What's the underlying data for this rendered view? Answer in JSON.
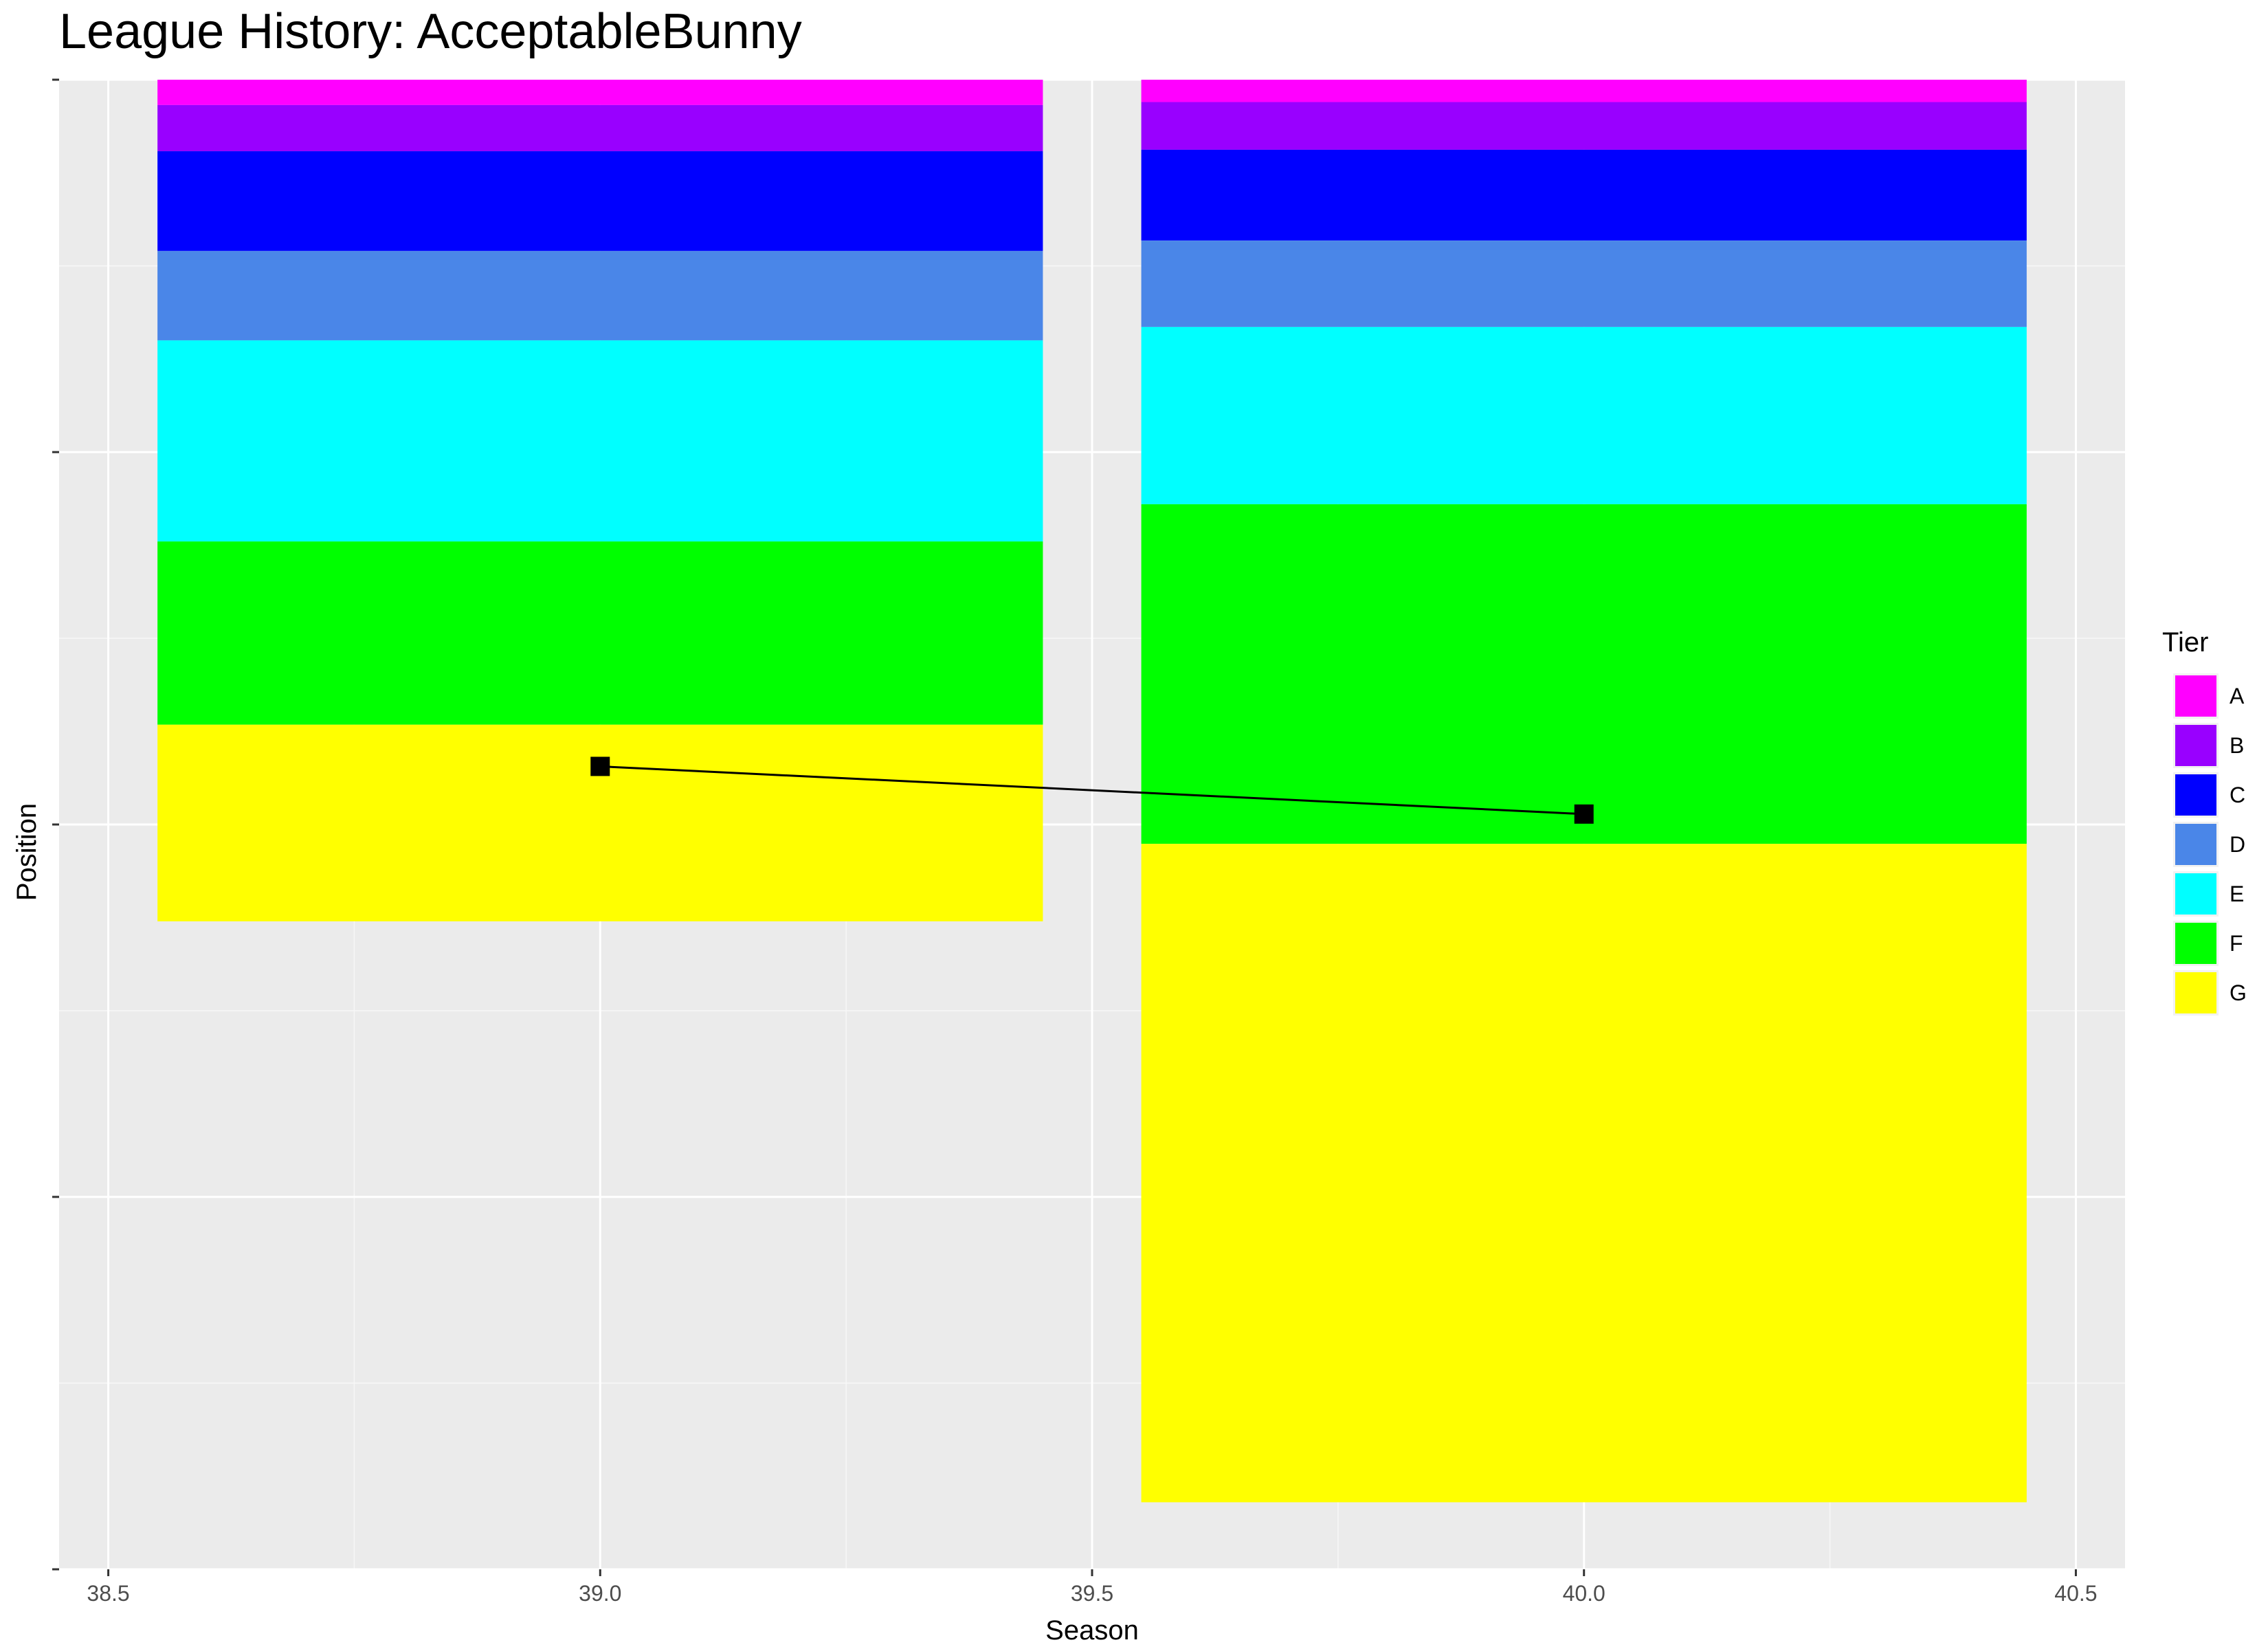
{
  "chart_data": {
    "type": "bar",
    "title": "League History: AcceptableBunny",
    "xlabel": "Season",
    "ylabel": "Position",
    "xlim": [
      38.45,
      40.55
    ],
    "ylim": [
      0,
      100
    ],
    "x_ticks": [
      "38.5",
      "39.0",
      "39.5",
      "40.0",
      "40.5"
    ],
    "x_tick_values": [
      38.5,
      39.0,
      39.5,
      40.0,
      40.5
    ],
    "y_tick_values": [
      0,
      25,
      50,
      75,
      100
    ],
    "grid": true,
    "legend_position": "right",
    "legend_title": "Tier",
    "tiers": [
      {
        "name": "A",
        "color": "#ff00ff"
      },
      {
        "name": "B",
        "color": "#9900ff"
      },
      {
        "name": "C",
        "color": "#0000ff"
      },
      {
        "name": "D",
        "color": "#4a86e8"
      },
      {
        "name": "E",
        "color": "#00ffff"
      },
      {
        "name": "F",
        "color": "#00ff00"
      },
      {
        "name": "G",
        "color": "#ffff00"
      }
    ],
    "bar_width": 0.9,
    "stacks": [
      {
        "season": 39,
        "segments": [
          {
            "tier": "A",
            "from": 100,
            "to": 98.3
          },
          {
            "tier": "B",
            "from": 98.3,
            "to": 95.2
          },
          {
            "tier": "C",
            "from": 95.2,
            "to": 88.5
          },
          {
            "tier": "D",
            "from": 88.5,
            "to": 82.5
          },
          {
            "tier": "E",
            "from": 82.5,
            "to": 69.0
          },
          {
            "tier": "F",
            "from": 69.0,
            "to": 56.7
          },
          {
            "tier": "G",
            "from": 56.7,
            "to": 43.5
          }
        ]
      },
      {
        "season": 40,
        "segments": [
          {
            "tier": "A",
            "from": 100,
            "to": 98.5
          },
          {
            "tier": "B",
            "from": 98.5,
            "to": 95.3
          },
          {
            "tier": "C",
            "from": 95.3,
            "to": 89.2
          },
          {
            "tier": "D",
            "from": 89.2,
            "to": 83.4
          },
          {
            "tier": "E",
            "from": 83.4,
            "to": 71.5
          },
          {
            "tier": "F",
            "from": 71.5,
            "to": 48.7
          },
          {
            "tier": "G",
            "from": 48.7,
            "to": 4.5
          }
        ]
      }
    ],
    "line": {
      "points": [
        {
          "x": 39,
          "y": 53.9
        },
        {
          "x": 40,
          "y": 50.7
        }
      ],
      "color": "#000000"
    }
  }
}
